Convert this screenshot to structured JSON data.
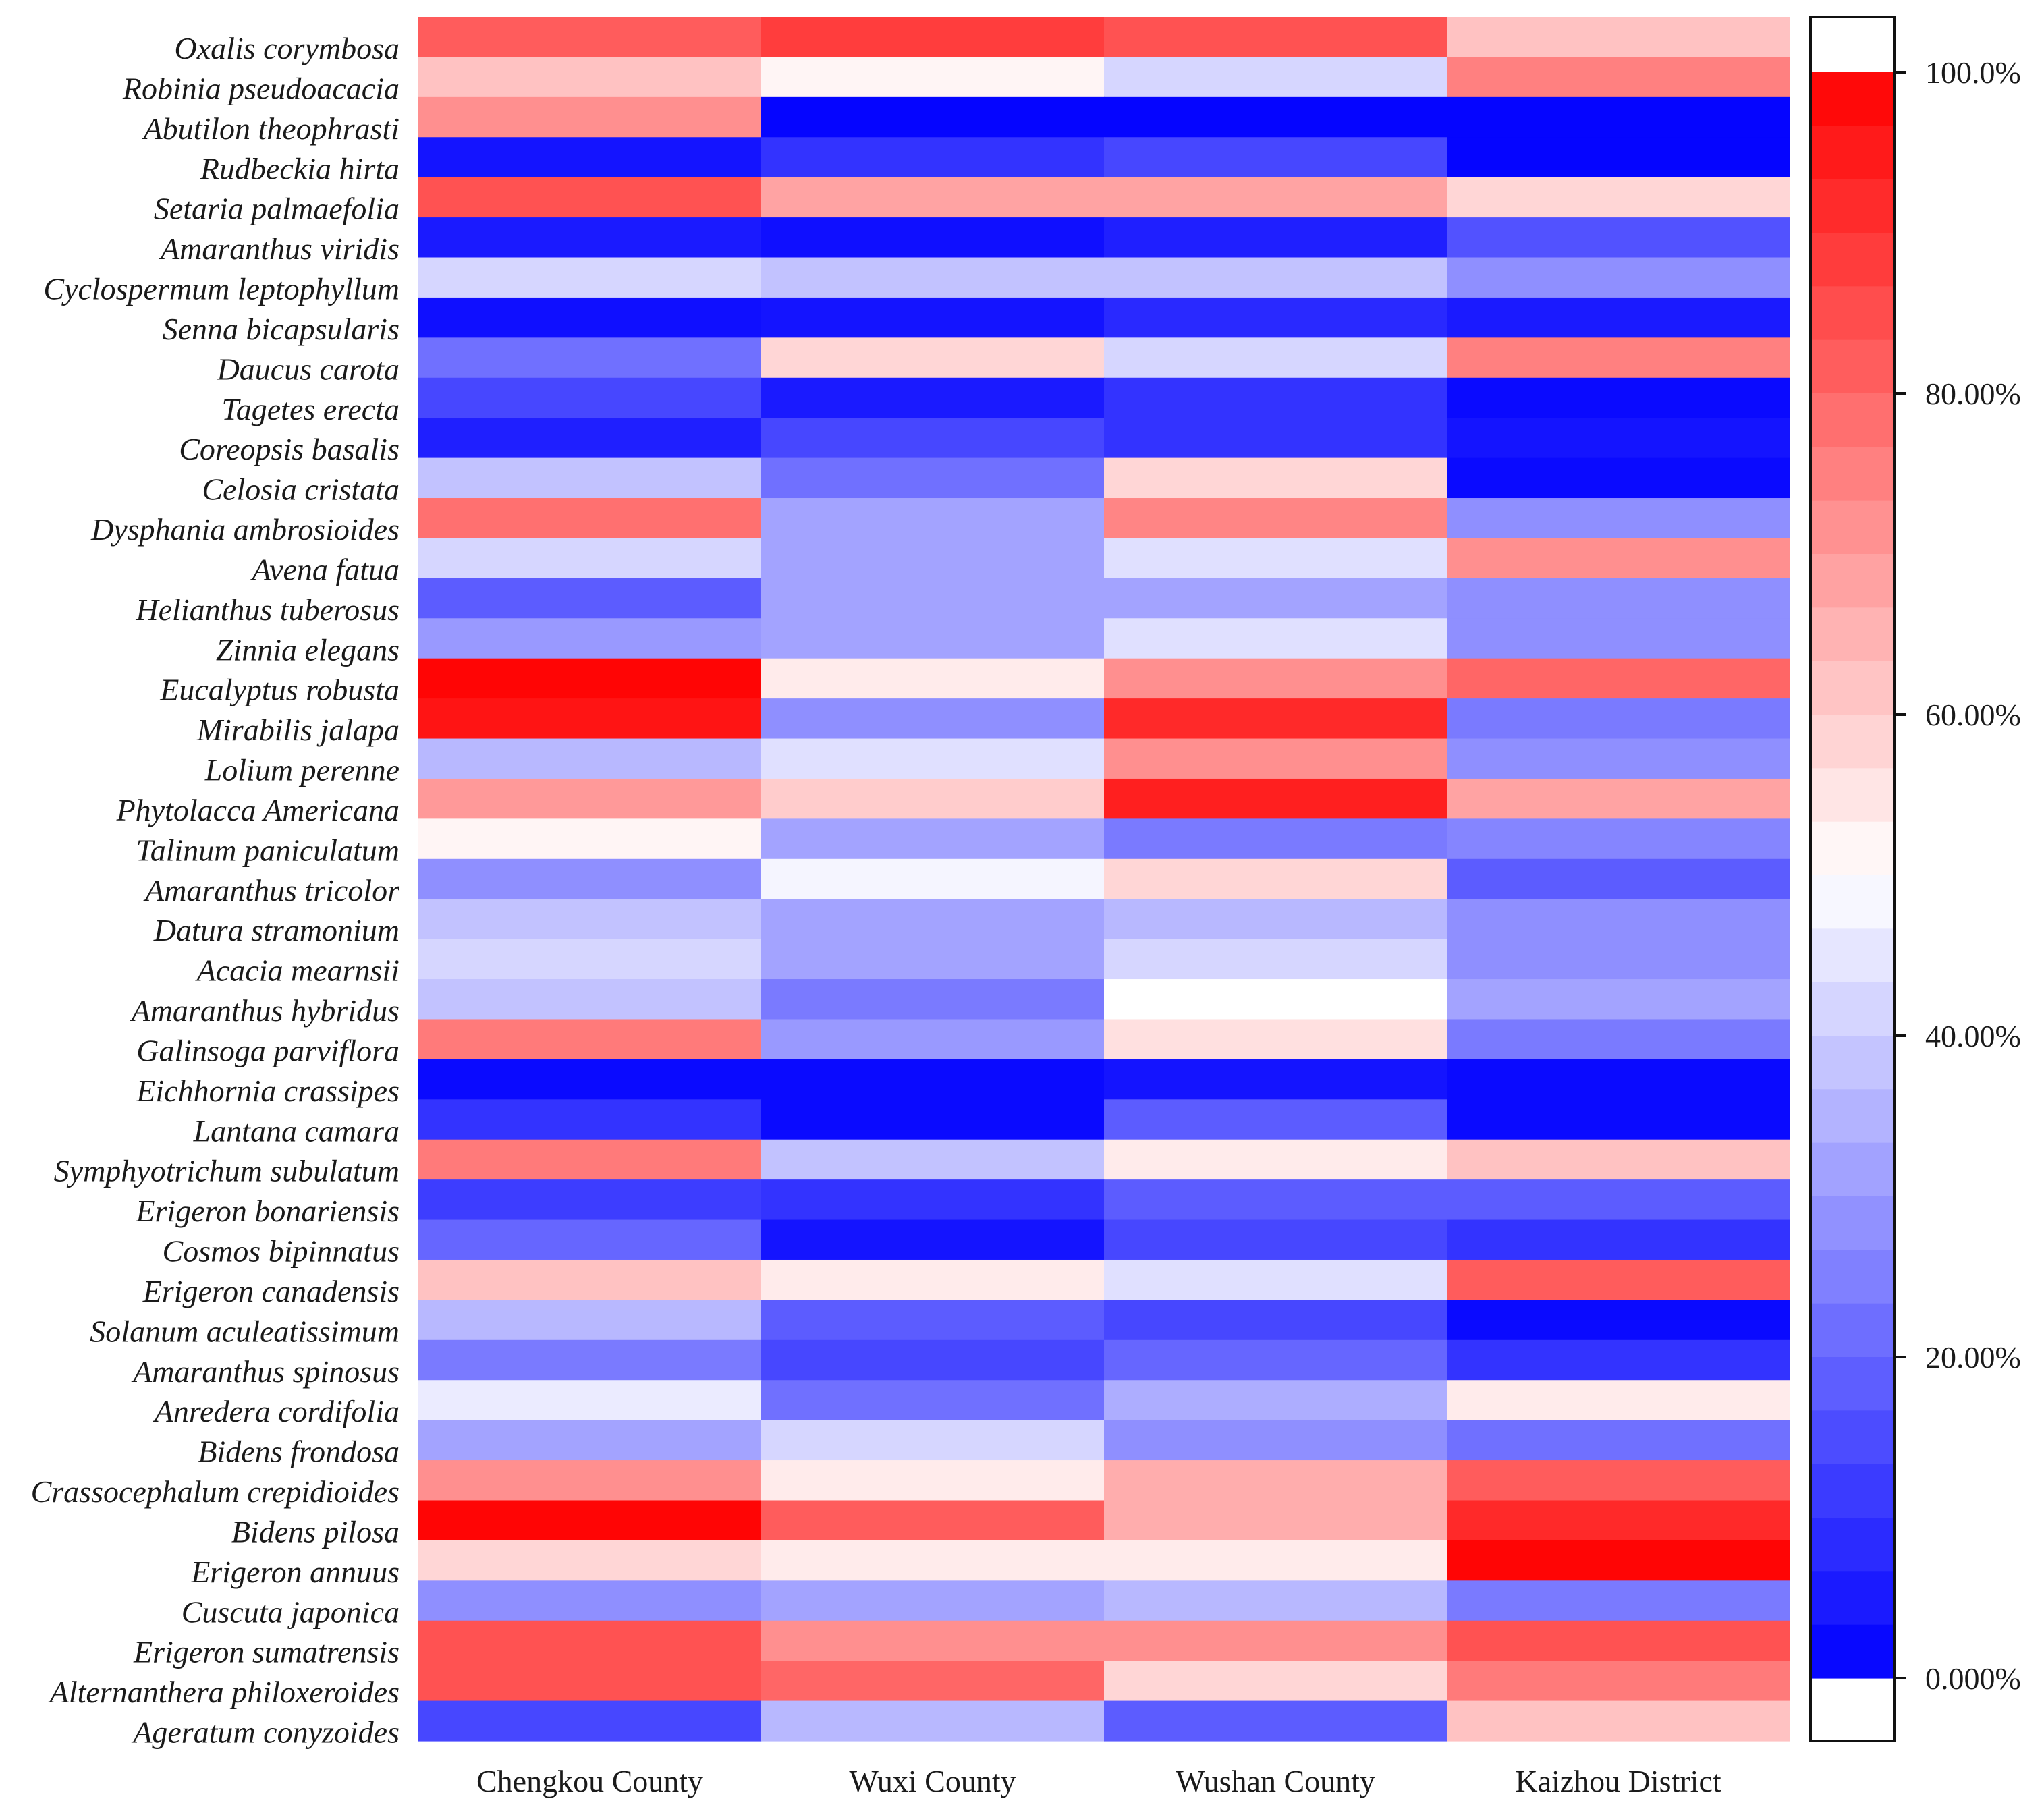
{
  "chart_data": {
    "type": "heatmap",
    "title": "",
    "xlabel": "",
    "ylabel": "",
    "columns": [
      "Chengkou County",
      "Wuxi County",
      "Wushan County",
      "Kaizhou District"
    ],
    "row_labels": [
      "Oxalis corymbosa",
      "Robinia pseudoacacia",
      "Abutilon theophrasti",
      "Rudbeckia hirta",
      "Setaria palmaefolia",
      "Amaranthus viridis",
      "Cyclospermum leptophyllum",
      "Senna bicapsularis",
      "Daucus carota",
      "Tagetes erecta",
      "Coreopsis basalis",
      "Celosia cristata",
      "Dysphania ambrosioides",
      "Avena fatua",
      "Helianthus tuberosus",
      "Zinnia elegans",
      "Eucalyptus robusta",
      "Mirabilis jalapa",
      "Lolium perenne",
      "Phytolacca Americana",
      "Talinum paniculatum",
      "Amaranthus tricolor",
      "Datura stramonium",
      "Acacia mearnsii",
      "Amaranthus hybridus",
      "Galinsoga parviflora",
      "Eichhornia crassipes",
      "Lantana camara",
      "Symphyotrichum subulatum",
      "Erigeron bonariensis",
      "Cosmos bipinnatus",
      "Erigeron canadensis",
      "Solanum aculeatissimum",
      "Amaranthus spinosus",
      "Anredera cordifolia",
      "Bidens frondosa",
      "Crassocephalum crepidioides",
      "Bidens pilosa",
      "Erigeron annuus",
      "Cuscuta japonica",
      "Erigeron sumatrensis",
      "Alternanthera philoxeroides",
      "Ageratum conyzoides"
    ],
    "value_unit": "%",
    "value_range": [
      0,
      100
    ],
    "values": [
      [
        82,
        88,
        84,
        62
      ],
      [
        62,
        52,
        42,
        75
      ],
      [
        72,
        1,
        1,
        1
      ],
      [
        4,
        10,
        14,
        1
      ],
      [
        84,
        68,
        68,
        58
      ],
      [
        5,
        3,
        6,
        16
      ],
      [
        42,
        38,
        38,
        28
      ],
      [
        3,
        4,
        8,
        5
      ],
      [
        22,
        58,
        42,
        75
      ],
      [
        14,
        5,
        10,
        2
      ],
      [
        6,
        14,
        10,
        4
      ],
      [
        38,
        22,
        58,
        2
      ],
      [
        78,
        32,
        74,
        28
      ],
      [
        42,
        32,
        44,
        72
      ],
      [
        18,
        32,
        32,
        28
      ],
      [
        30,
        32,
        44,
        28
      ],
      [
        99,
        54,
        72,
        80
      ],
      [
        96,
        28,
        92,
        24
      ],
      [
        36,
        44,
        72,
        28
      ],
      [
        70,
        60,
        94,
        68
      ],
      [
        52,
        32,
        24,
        26
      ],
      [
        28,
        48,
        58,
        18
      ],
      [
        38,
        32,
        36,
        28
      ],
      [
        42,
        32,
        42,
        28
      ],
      [
        38,
        24,
        50,
        32
      ],
      [
        76,
        30,
        56,
        24
      ],
      [
        2,
        2,
        4,
        2
      ],
      [
        10,
        2,
        18,
        2
      ],
      [
        76,
        38,
        54,
        62
      ],
      [
        12,
        10,
        18,
        18
      ],
      [
        20,
        4,
        14,
        10
      ],
      [
        62,
        54,
        44,
        82
      ],
      [
        36,
        18,
        14,
        2
      ],
      [
        24,
        14,
        20,
        10
      ],
      [
        46,
        22,
        34,
        54
      ],
      [
        32,
        42,
        28,
        22
      ],
      [
        72,
        54,
        66,
        82
      ],
      [
        99,
        82,
        66,
        92
      ],
      [
        58,
        54,
        54,
        99
      ],
      [
        28,
        32,
        36,
        24
      ],
      [
        84,
        72,
        72,
        84
      ],
      [
        84,
        80,
        58,
        76
      ],
      [
        14,
        36,
        18,
        62
      ]
    ],
    "colorbar": {
      "ticks": [
        "100.0%",
        "80.00%",
        "60.00%",
        "40.00%",
        "20.00%",
        "0.000%"
      ],
      "tick_values": [
        100,
        80,
        60,
        40,
        20,
        0
      ],
      "low_color": "#0000ff",
      "mid_color": "#ffffff",
      "high_color": "#ff0000",
      "steps": 30
    }
  }
}
